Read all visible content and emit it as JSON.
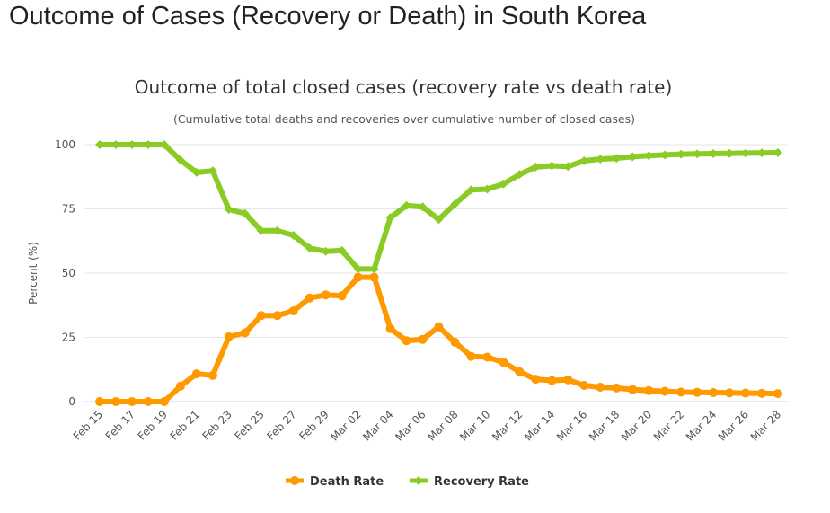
{
  "page": {
    "title": "Outcome of Cases (Recovery or Death) in South Korea"
  },
  "chart_data": {
    "type": "line",
    "title": "Outcome of total closed cases (recovery rate vs death rate)",
    "subtitle": "(Cumulative total deaths and recoveries over cumulative number of closed cases)",
    "xlabel": "",
    "ylabel": "Percent (%)",
    "ylim": [
      0,
      100
    ],
    "yticks": [
      0,
      25,
      50,
      75,
      100
    ],
    "grid": true,
    "legend_position": "bottom",
    "x": [
      "Feb 15",
      "Feb 16",
      "Feb 17",
      "Feb 18",
      "Feb 19",
      "Feb 20",
      "Feb 21",
      "Feb 22",
      "Feb 23",
      "Feb 24",
      "Feb 25",
      "Feb 26",
      "Feb 27",
      "Feb 28",
      "Feb 29",
      "Mar 01",
      "Mar 02",
      "Mar 03",
      "Mar 04",
      "Mar 05",
      "Mar 06",
      "Mar 07",
      "Mar 08",
      "Mar 09",
      "Mar 10",
      "Mar 11",
      "Mar 12",
      "Mar 13",
      "Mar 14",
      "Mar 15",
      "Mar 16",
      "Mar 17",
      "Mar 18",
      "Mar 19",
      "Mar 20",
      "Mar 21",
      "Mar 22",
      "Mar 23",
      "Mar 24",
      "Mar 25",
      "Mar 26",
      "Mar 27",
      "Mar 28"
    ],
    "xtick_labels": [
      "Feb 15",
      "Feb 17",
      "Feb 19",
      "Feb 21",
      "Feb 23",
      "Feb 25",
      "Feb 27",
      "Feb 29",
      "Mar 02",
      "Mar 04",
      "Mar 06",
      "Mar 08",
      "Mar 10",
      "Mar 12",
      "Mar 14",
      "Mar 16",
      "Mar 18",
      "Mar 20",
      "Mar 22",
      "Mar 24",
      "Mar 26",
      "Mar 28"
    ],
    "series": [
      {
        "name": "Death Rate",
        "color": "#ff9900",
        "marker": "circle",
        "values": [
          0,
          0,
          0,
          0,
          0,
          6,
          10.8,
          10.2,
          25.2,
          26.8,
          33.5,
          33.5,
          35.3,
          40.3,
          41.5,
          41.2,
          48.4,
          48.4,
          28.4,
          23.7,
          24.2,
          29.1,
          23.1,
          17.6,
          17.3,
          15.3,
          11.6,
          8.7,
          8.2,
          8.5,
          6.3,
          5.6,
          5.3,
          4.7,
          4.3,
          4.0,
          3.7,
          3.6,
          3.5,
          3.4,
          3.3,
          3.2,
          3.1
        ]
      },
      {
        "name": "Recovery Rate",
        "color": "#8acc25",
        "marker": "diamond",
        "values": [
          100,
          100,
          100,
          100,
          100,
          94,
          89.2,
          89.8,
          74.8,
          73.2,
          66.5,
          66.5,
          64.7,
          59.7,
          58.5,
          58.8,
          51.6,
          51.6,
          71.6,
          76.3,
          75.8,
          70.9,
          76.9,
          82.4,
          82.7,
          84.7,
          88.4,
          91.3,
          91.8,
          91.5,
          93.7,
          94.4,
          94.7,
          95.3,
          95.7,
          96.0,
          96.3,
          96.4,
          96.5,
          96.6,
          96.7,
          96.8,
          96.9
        ]
      }
    ]
  }
}
